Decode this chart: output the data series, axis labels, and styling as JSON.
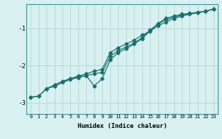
{
  "xlabel": "Humidex (Indice chaleur)",
  "bg_color": "#d8f0f0",
  "line_color": "#1a7070",
  "grid_color": "#b8d8d8",
  "xlim": [
    -0.5,
    23.5
  ],
  "ylim": [
    -3.3,
    -0.35
  ],
  "yticks": [
    -3,
    -2,
    -1
  ],
  "xticks": [
    0,
    1,
    2,
    3,
    4,
    5,
    6,
    7,
    8,
    9,
    10,
    11,
    12,
    13,
    14,
    15,
    16,
    17,
    18,
    19,
    20,
    21,
    22,
    23
  ],
  "line1_x": [
    0,
    1,
    2,
    3,
    4,
    5,
    6,
    7,
    8,
    9,
    10,
    11,
    12,
    13,
    14,
    15,
    16,
    17,
    18,
    19,
    20,
    21,
    22,
    23
  ],
  "line1_y": [
    -2.85,
    -2.82,
    -2.62,
    -2.52,
    -2.42,
    -2.35,
    -2.28,
    -2.22,
    -2.15,
    -2.1,
    -1.65,
    -1.52,
    -1.42,
    -1.32,
    -1.18,
    -1.08,
    -0.93,
    -0.83,
    -0.74,
    -0.67,
    -0.62,
    -0.58,
    -0.54,
    -0.48
  ],
  "line2_x": [
    0,
    1,
    2,
    3,
    4,
    5,
    6,
    7,
    8,
    9,
    10,
    11,
    12,
    13,
    14,
    15,
    16,
    17,
    18,
    19,
    20,
    21,
    22,
    23
  ],
  "line2_y": [
    -2.85,
    -2.82,
    -2.62,
    -2.55,
    -2.45,
    -2.37,
    -2.3,
    -2.27,
    -2.22,
    -2.18,
    -1.75,
    -1.6,
    -1.5,
    -1.4,
    -1.25,
    -1.05,
    -0.88,
    -0.77,
    -0.7,
    -0.64,
    -0.6,
    -0.57,
    -0.54,
    -0.48
  ],
  "line3_x": [
    2,
    3,
    4,
    5,
    6,
    7,
    8,
    9,
    10,
    11,
    12,
    13,
    14,
    15,
    16,
    17,
    18,
    19,
    20,
    21,
    22,
    23
  ],
  "line3_y": [
    -2.62,
    -2.55,
    -2.45,
    -2.37,
    -2.32,
    -2.27,
    -2.55,
    -2.35,
    -1.85,
    -1.65,
    -1.55,
    -1.42,
    -1.28,
    -1.07,
    -0.87,
    -0.73,
    -0.67,
    -0.62,
    -0.6,
    -0.57,
    -0.54,
    -0.48
  ]
}
